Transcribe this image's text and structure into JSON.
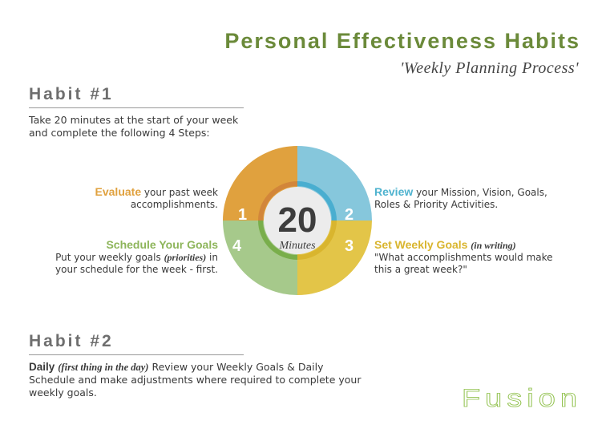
{
  "header": {
    "title": "Personal Effectiveness Habits",
    "subtitle": "'Weekly Planning Process'"
  },
  "habit1": {
    "heading": "Habit #1",
    "intro": "Take 20 minutes at the start of your week and complete the following 4 Steps:"
  },
  "wheel": {
    "center_number": "20",
    "center_label": "Minutes",
    "colors": {
      "q1": "#e0a13e",
      "q2": "#86c7dc",
      "q3": "#e3c548",
      "q4": "#a6c98b",
      "ring_q1": "#d2863a",
      "ring_q2": "#49aed0",
      "ring_q3": "#d9b52e",
      "ring_q4": "#79ae4b"
    },
    "numbers": [
      "1",
      "2",
      "3",
      "4"
    ]
  },
  "steps": [
    {
      "n": "1",
      "keyword": "Evaluate",
      "rest": " your past week accomplishments."
    },
    {
      "n": "2",
      "keyword": "Review",
      "rest": " your Mission, Vision, Goals, Roles & Priority Activities."
    },
    {
      "n": "3",
      "keyword": "Set Weekly Goals",
      "note": "(in writing)",
      "rest": "\"What accomplishments would make this a great week?\""
    },
    {
      "n": "4",
      "keyword": "Schedule Your Goals",
      "pre": "Put your weekly goals ",
      "note": "(priorities)",
      "rest": " in your schedule for the week - first."
    }
  ],
  "habit2": {
    "heading": "Habit #2",
    "keyword": "Daily",
    "note": "(first thing in the day)",
    "rest": " Review your Weekly Goals & Daily Schedule and make adjustments where required to complete your weekly goals."
  },
  "logo": "Fusion"
}
